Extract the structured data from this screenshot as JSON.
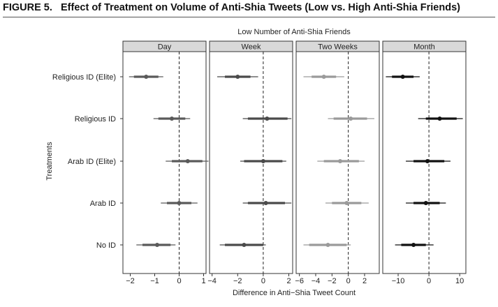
{
  "figure": {
    "label": "FIGURE 5.",
    "title": "Effect of Treatment on Volume of Anti-Shia Tweets (Low vs. High Anti-Shia Friends)"
  },
  "chart_data": {
    "type": "coefficient-plot",
    "subtitle": "Low Number of Anti-Shia Friends",
    "xlabel": "Difference in Anti−Shia Tweet Count",
    "ylabel": "Treatments",
    "treatments": [
      "Religious ID (Elite)",
      "Religious ID",
      "Arab ID (Elite)",
      "Arab ID",
      "No ID"
    ],
    "reference_line": 0,
    "grid": false,
    "panels": [
      {
        "name": "Day",
        "color": "#5a5a5a",
        "xlim": [
          -2.3,
          1.1
        ],
        "ticks": [
          -2,
          -1,
          0,
          1
        ],
        "tick_labels": [
          "−2",
          "−1",
          "0",
          "1"
        ],
        "estimates": [
          {
            "treatment": "Religious ID (Elite)",
            "est": -1.35,
            "ci90": [
              -1.85,
              -0.85
            ],
            "ci95": [
              -2.05,
              -0.65
            ]
          },
          {
            "treatment": "Religious ID",
            "est": -0.3,
            "ci90": [
              -0.85,
              0.25
            ],
            "ci95": [
              -1.05,
              0.45
            ]
          },
          {
            "treatment": "Arab ID (Elite)",
            "est": 0.35,
            "ci90": [
              -0.3,
              0.95
            ],
            "ci95": [
              -0.55,
              1.2
            ]
          },
          {
            "treatment": "Arab ID",
            "est": 0.0,
            "ci90": [
              -0.5,
              0.5
            ],
            "ci95": [
              -0.75,
              0.75
            ]
          },
          {
            "treatment": "No ID",
            "est": -0.9,
            "ci90": [
              -1.5,
              -0.35
            ],
            "ci95": [
              -1.75,
              -0.15
            ]
          }
        ]
      },
      {
        "name": "Week",
        "color": "#4a4a4a",
        "xlim": [
          -4.2,
          2.3
        ],
        "ticks": [
          -4,
          -2,
          0,
          2
        ],
        "tick_labels": [
          "−4",
          "−2",
          "0",
          "2"
        ],
        "estimates": [
          {
            "treatment": "Religious ID (Elite)",
            "est": -2.0,
            "ci90": [
              -3.0,
              -1.0
            ],
            "ci95": [
              -3.6,
              -0.4
            ]
          },
          {
            "treatment": "Religious ID",
            "est": 0.3,
            "ci90": [
              -1.2,
              1.9
            ],
            "ci95": [
              -1.6,
              2.2
            ]
          },
          {
            "treatment": "Arab ID (Elite)",
            "est": 0.0,
            "ci90": [
              -1.5,
              1.5
            ],
            "ci95": [
              -1.8,
              1.8
            ]
          },
          {
            "treatment": "Arab ID",
            "est": 0.2,
            "ci90": [
              -1.2,
              1.7
            ],
            "ci95": [
              -1.6,
              2.2
            ]
          },
          {
            "treatment": "No ID",
            "est": -1.5,
            "ci90": [
              -3.0,
              0.0
            ],
            "ci95": [
              -3.4,
              0.2
            ]
          }
        ]
      },
      {
        "name": "Two Weeks",
        "color": "#9a9a9a",
        "xlim": [
          -6.4,
          3.8
        ],
        "ticks": [
          -6,
          -4,
          -2,
          0,
          2
        ],
        "tick_labels": [
          "−6",
          "−4",
          "−2",
          "0",
          "2"
        ],
        "estimates": [
          {
            "treatment": "Religious ID (Elite)",
            "est": -3.0,
            "ci90": [
              -4.5,
              -1.5
            ],
            "ci95": [
              -5.5,
              -0.5
            ]
          },
          {
            "treatment": "Religious ID",
            "est": 0.3,
            "ci90": [
              -1.8,
              2.3
            ],
            "ci95": [
              -2.5,
              3.2
            ]
          },
          {
            "treatment": "Arab ID (Elite)",
            "est": -1.0,
            "ci90": [
              -3.0,
              1.3
            ],
            "ci95": [
              -3.8,
              2.0
            ]
          },
          {
            "treatment": "Arab ID",
            "est": -0.2,
            "ci90": [
              -2.0,
              1.6
            ],
            "ci95": [
              -2.8,
              2.5
            ]
          },
          {
            "treatment": "No ID",
            "est": -2.5,
            "ci90": [
              -4.8,
              -0.2
            ],
            "ci95": [
              -5.5,
              0.3
            ]
          }
        ]
      },
      {
        "name": "Month",
        "color": "#111111",
        "xlim": [
          -15,
          12
        ],
        "ticks": [
          -10,
          0,
          10
        ],
        "tick_labels": [
          "−10",
          "0",
          "10"
        ],
        "estimates": [
          {
            "treatment": "Religious ID (Elite)",
            "est": -8.5,
            "ci90": [
              -12.0,
              -5.0
            ],
            "ci95": [
              -14.0,
              -3.0
            ]
          },
          {
            "treatment": "Religious ID",
            "est": 3.5,
            "ci90": [
              -1.0,
              9.0
            ],
            "ci95": [
              -3.5,
              11.0
            ]
          },
          {
            "treatment": "Arab ID (Elite)",
            "est": -0.5,
            "ci90": [
              -5.0,
              5.0
            ],
            "ci95": [
              -7.5,
              7.0
            ]
          },
          {
            "treatment": "Arab ID",
            "est": -1.0,
            "ci90": [
              -5.0,
              3.5
            ],
            "ci95": [
              -7.5,
              5.5
            ]
          },
          {
            "treatment": "No ID",
            "est": -5.0,
            "ci90": [
              -9.0,
              -1.0
            ],
            "ci95": [
              -11.0,
              1.5
            ]
          }
        ]
      }
    ]
  }
}
